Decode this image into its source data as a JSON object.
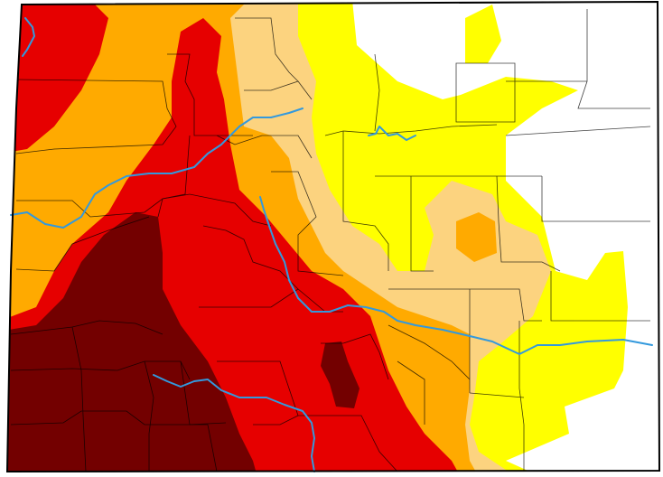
{
  "map": {
    "region": "Colorado",
    "colors": {
      "none": "#ffffff",
      "abnormally_dry": "#ffff00",
      "moderate": "#fcd37f",
      "severe": "#ffaa00",
      "extreme": "#e60000",
      "exceptional": "#730000",
      "river": "#3399dd",
      "county_line": "#000000"
    },
    "features": {
      "rivers": [
        "colorado-river",
        "arkansas-river",
        "rio-grande",
        "south-platte-river"
      ]
    }
  }
}
